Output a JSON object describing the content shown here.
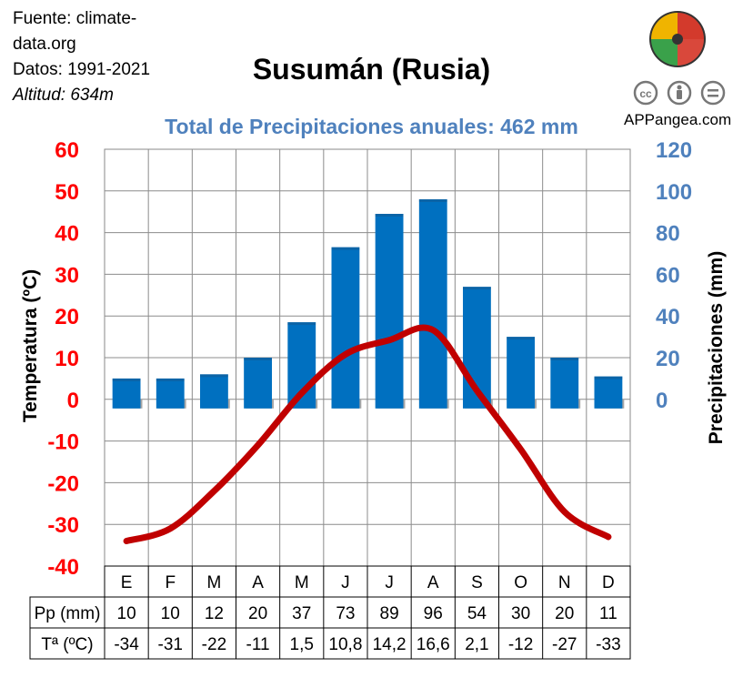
{
  "source": {
    "line1": "Fuente: climate-",
    "line2": "data.org",
    "line3": "Datos: 1991-2021",
    "line4": "Altitud: 634m"
  },
  "brand": "APPangea.com",
  "license_icons": [
    "cc-icon",
    "by-person-icon",
    "equals-icon"
  ],
  "colors": {
    "temperature": "#c00000",
    "precipitation": "#0070c0",
    "left_axis": "#ff0000",
    "right_axis": "#4f81bd",
    "subtitle": "#4f81bd"
  },
  "chart_data": {
    "type": "bar",
    "title": "Susumán (Rusia)",
    "subtitle": "Total de Precipitaciones anuales: 462 mm",
    "categories": [
      "E",
      "F",
      "M",
      "A",
      "M",
      "J",
      "J",
      "A",
      "S",
      "O",
      "N",
      "D"
    ],
    "ylabel_left": "Temperatura (ºC)",
    "ylabel_right": "Precipitaciones (mm)",
    "ylim_left": [
      -40,
      60
    ],
    "yticks_left": [
      "60",
      "50",
      "40",
      "30",
      "20",
      "10",
      "0",
      "-10",
      "-20",
      "-30",
      "-40"
    ],
    "ylim_right": [
      0,
      120
    ],
    "yticks_right": [
      "120",
      "100",
      "80",
      "60",
      "40",
      "20",
      "0"
    ],
    "grid": true,
    "series": [
      {
        "name": "Pp (mm)",
        "type": "bar",
        "axis": "right",
        "values": [
          10,
          10,
          12,
          20,
          37,
          73,
          89,
          96,
          54,
          30,
          20,
          11
        ]
      },
      {
        "name": "Tª (ºC)",
        "type": "line",
        "axis": "left",
        "values": [
          -34,
          -31,
          -22,
          -11,
          1.5,
          10.8,
          14.2,
          16.6,
          2.1,
          -12,
          -27,
          -33
        ]
      }
    ],
    "table": {
      "row_labels": [
        "Pp (mm)",
        "Tª (ºC)"
      ],
      "pp": [
        "10",
        "10",
        "12",
        "20",
        "37",
        "73",
        "89",
        "96",
        "54",
        "30",
        "20",
        "11"
      ],
      "temp": [
        "-34",
        "-31",
        "-22",
        "-11",
        "1,5",
        "10,8",
        "14,2",
        "16,6",
        "2,1",
        "-12",
        "-27",
        "-33"
      ]
    }
  }
}
